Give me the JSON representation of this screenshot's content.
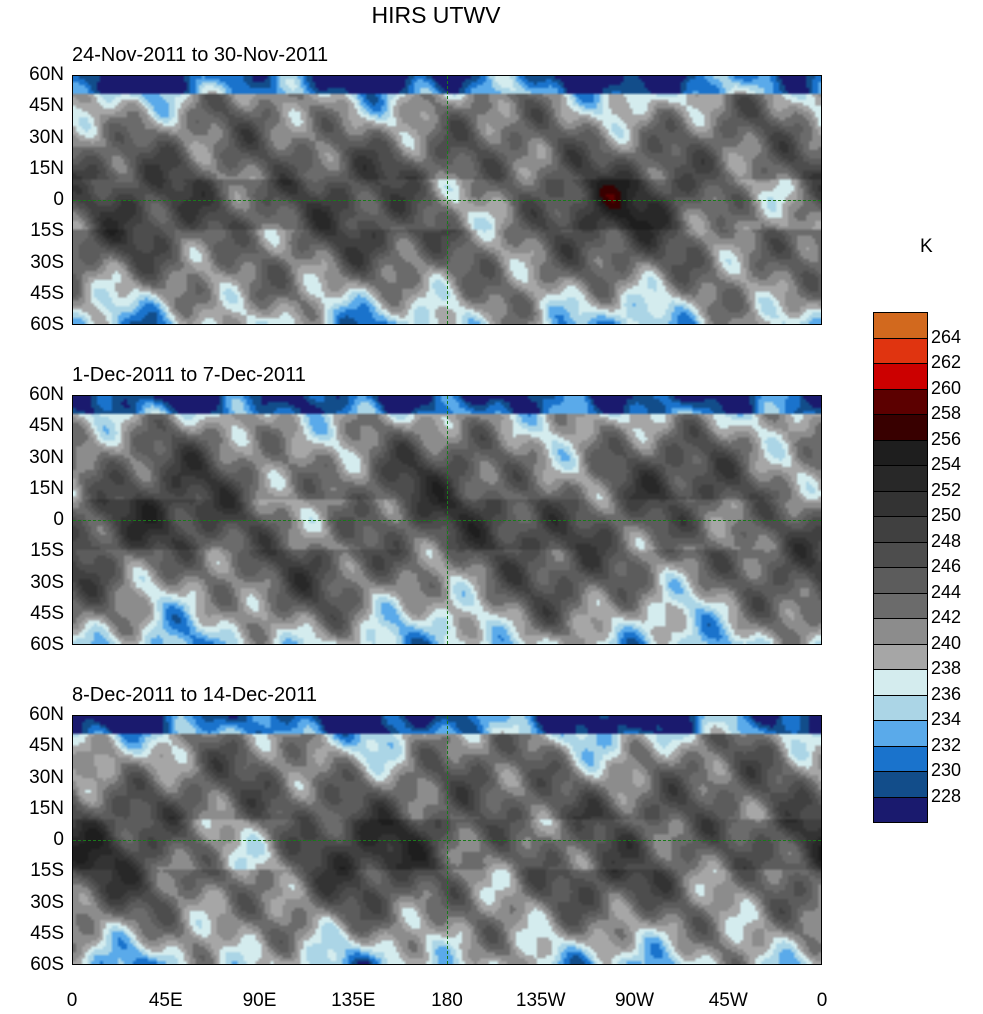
{
  "chart_data": {
    "type": "heatmap",
    "title": "HIRS UTWV",
    "unit": "K",
    "panels": [
      {
        "title": "24-Nov-2011 to 30-Nov-2011"
      },
      {
        "title": "1-Dec-2011 to 7-Dec-2011"
      },
      {
        "title": "8-Dec-2011 to 14-Dec-2011"
      }
    ],
    "lat_ticks": [
      "60N",
      "45N",
      "30N",
      "15N",
      "0",
      "15S",
      "30S",
      "45S",
      "60S"
    ],
    "lon_ticks": [
      "0",
      "45E",
      "90E",
      "135E",
      "180",
      "135W",
      "90W",
      "45W",
      "0"
    ],
    "ylim": [
      -60,
      60
    ],
    "xlim": [
      0,
      360
    ],
    "colorbar": {
      "levels": [
        228,
        230,
        232,
        234,
        236,
        238,
        240,
        242,
        244,
        246,
        248,
        250,
        252,
        254,
        256,
        258,
        260,
        262,
        264
      ],
      "colors": [
        "#1a1a6e",
        "#124d8a",
        "#1a73cc",
        "#5aaaea",
        "#abd5e6",
        "#d4ecee",
        "#a6a6a6",
        "#8c8c8c",
        "#6b6b6b",
        "#5c5c5c",
        "#4d4d4d",
        "#404040",
        "#333333",
        "#282828",
        "#1e1e1e",
        "#380000",
        "#5c0000",
        "#cc0000",
        "#e03410",
        "#d2691e"
      ]
    }
  }
}
